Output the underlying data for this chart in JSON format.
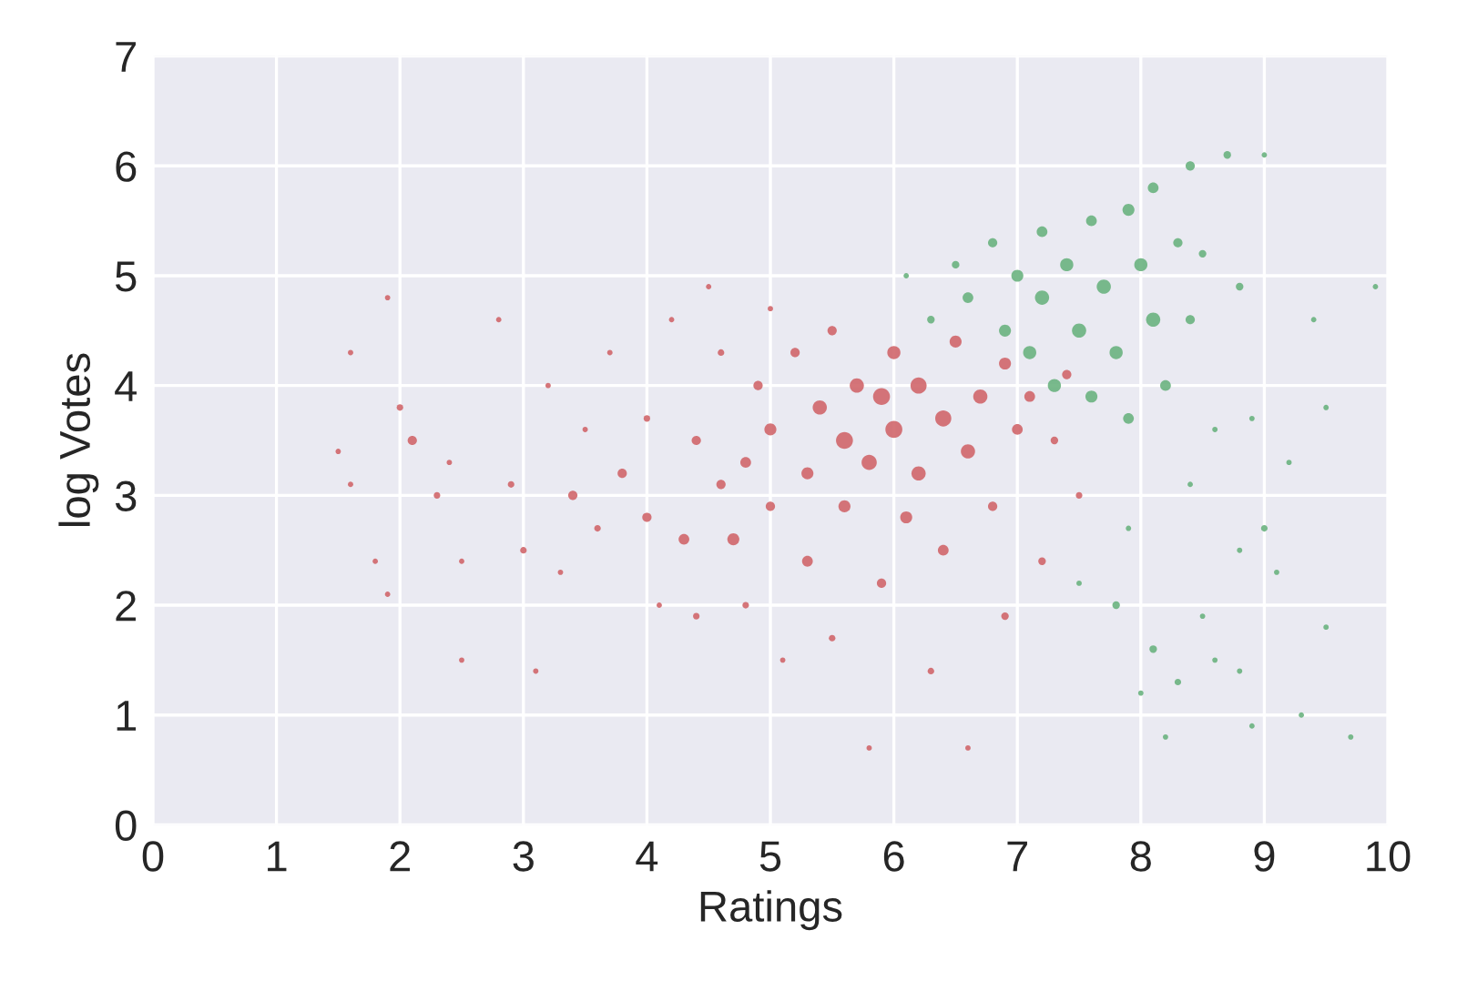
{
  "chart_data": {
    "type": "bubble",
    "xlabel": "Ratings",
    "ylabel": "log Votes",
    "xlim": [
      0,
      10
    ],
    "ylim": [
      0,
      7
    ],
    "xticks": [
      0,
      1,
      2,
      3,
      4,
      5,
      6,
      7,
      8,
      9,
      10
    ],
    "yticks": [
      0,
      1,
      2,
      3,
      4,
      5,
      6,
      7
    ],
    "grid": true,
    "series": [
      {
        "color": "#d0666a",
        "x": [
          1.5,
          1.6,
          1.6,
          1.8,
          1.9,
          1.9,
          2.0,
          2.1,
          2.3,
          2.4,
          2.5,
          2.5,
          2.8,
          2.9,
          3.0,
          3.1,
          3.3,
          3.4,
          3.5,
          3.6,
          3.7,
          3.8,
          4.0,
          4.0,
          4.1,
          4.2,
          4.3,
          4.4,
          4.4,
          4.6,
          4.6,
          4.7,
          4.8,
          4.8,
          4.9,
          5.0,
          5.0,
          5.1,
          5.2,
          5.3,
          5.3,
          5.4,
          5.5,
          5.5,
          5.6,
          5.6,
          5.7,
          5.8,
          5.8,
          5.9,
          5.9,
          6.0,
          6.0,
          6.1,
          6.2,
          6.2,
          6.3,
          6.4,
          6.4,
          6.5,
          6.6,
          6.6,
          6.7,
          6.8,
          6.9,
          6.9,
          7.0,
          7.1,
          7.2,
          7.3,
          7.4,
          7.5,
          4.5,
          5.0,
          3.2
        ],
        "values": [
          3.4,
          4.3,
          3.1,
          2.4,
          4.8,
          2.1,
          3.8,
          3.5,
          3.0,
          3.3,
          1.5,
          2.4,
          4.6,
          3.1,
          2.5,
          1.4,
          2.3,
          3.0,
          3.6,
          2.7,
          4.3,
          3.2,
          2.8,
          3.7,
          2.0,
          4.6,
          2.6,
          3.5,
          1.9,
          3.1,
          4.3,
          2.6,
          3.3,
          2.0,
          4.0,
          2.9,
          3.6,
          1.5,
          4.3,
          2.4,
          3.2,
          3.8,
          4.5,
          1.7,
          2.9,
          3.5,
          4.0,
          0.7,
          3.3,
          2.2,
          3.9,
          4.3,
          3.6,
          2.8,
          3.2,
          4.0,
          1.4,
          3.7,
          2.5,
          4.4,
          3.4,
          0.7,
          3.9,
          2.9,
          4.2,
          1.9,
          3.6,
          3.9,
          2.4,
          3.5,
          4.1,
          3.0,
          4.9,
          4.7,
          4.0
        ],
        "sizes": [
          0.1,
          0.1,
          0.1,
          0.1,
          0.1,
          0.1,
          0.15,
          0.3,
          0.15,
          0.1,
          0.1,
          0.1,
          0.1,
          0.15,
          0.15,
          0.1,
          0.1,
          0.3,
          0.1,
          0.15,
          0.1,
          0.3,
          0.3,
          0.15,
          0.1,
          0.1,
          0.4,
          0.3,
          0.15,
          0.3,
          0.15,
          0.5,
          0.4,
          0.15,
          0.3,
          0.3,
          0.5,
          0.1,
          0.3,
          0.4,
          0.5,
          0.7,
          0.3,
          0.15,
          0.5,
          1.0,
          0.7,
          0.1,
          0.8,
          0.3,
          1.0,
          0.6,
          1.0,
          0.5,
          0.7,
          0.9,
          0.15,
          0.9,
          0.4,
          0.5,
          0.7,
          0.1,
          0.7,
          0.3,
          0.5,
          0.2,
          0.4,
          0.4,
          0.2,
          0.2,
          0.3,
          0.15,
          0.1,
          0.1,
          0.1
        ]
      },
      {
        "color": "#6ab37f",
        "x": [
          6.1,
          6.3,
          6.5,
          6.6,
          6.8,
          6.9,
          7.0,
          7.1,
          7.2,
          7.2,
          7.3,
          7.4,
          7.5,
          7.6,
          7.6,
          7.7,
          7.8,
          7.9,
          7.9,
          8.0,
          8.1,
          8.1,
          8.2,
          8.3,
          8.4,
          8.4,
          8.5,
          8.6,
          8.7,
          8.8,
          8.9,
          9.0,
          9.0,
          9.2,
          9.4,
          9.5,
          9.9,
          7.8,
          8.0,
          8.1,
          8.3,
          8.5,
          8.8,
          8.9,
          9.3,
          9.5,
          7.9,
          8.4,
          7.5,
          9.7,
          8.2,
          8.6,
          9.1,
          8.8
        ],
        "values": [
          5.0,
          4.6,
          5.1,
          4.8,
          5.3,
          4.5,
          5.0,
          4.3,
          5.4,
          4.8,
          4.0,
          5.1,
          4.5,
          5.5,
          3.9,
          4.9,
          4.3,
          5.6,
          3.7,
          5.1,
          4.6,
          5.8,
          4.0,
          5.3,
          4.6,
          6.0,
          5.2,
          3.6,
          6.1,
          4.9,
          3.7,
          6.1,
          2.7,
          3.3,
          4.6,
          3.8,
          4.9,
          2.0,
          1.2,
          1.6,
          1.3,
          1.9,
          1.4,
          0.9,
          1.0,
          1.8,
          2.7,
          3.1,
          2.2,
          0.8,
          0.8,
          1.5,
          2.3,
          2.5
        ],
        "sizes": [
          0.1,
          0.2,
          0.2,
          0.4,
          0.3,
          0.5,
          0.5,
          0.6,
          0.4,
          0.7,
          0.6,
          0.6,
          0.7,
          0.4,
          0.5,
          0.7,
          0.6,
          0.5,
          0.4,
          0.6,
          0.7,
          0.4,
          0.4,
          0.3,
          0.3,
          0.3,
          0.2,
          0.1,
          0.2,
          0.2,
          0.1,
          0.1,
          0.15,
          0.1,
          0.1,
          0.1,
          0.1,
          0.2,
          0.1,
          0.2,
          0.15,
          0.1,
          0.1,
          0.1,
          0.1,
          0.1,
          0.1,
          0.1,
          0.1,
          0.1,
          0.1,
          0.1,
          0.1,
          0.1
        ]
      }
    ]
  }
}
